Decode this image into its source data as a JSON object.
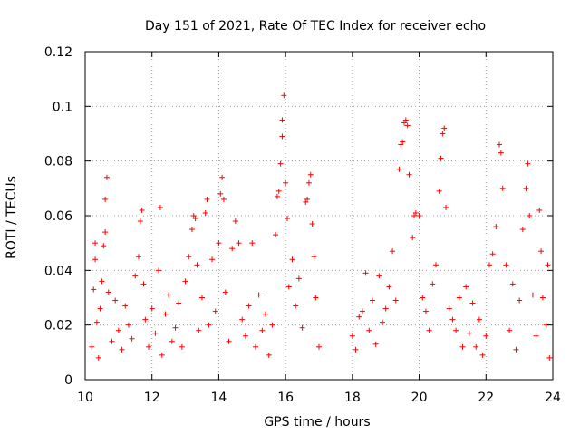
{
  "chart_data": {
    "type": "scatter",
    "title": "Day 151 of 2021, Rate Of TEC Index for receiver echo",
    "xlabel": "GPS time / hours",
    "ylabel": "ROTI / TECUs",
    "xlim": [
      10,
      24
    ],
    "ylim": [
      0,
      0.12
    ],
    "x_ticks": [
      10,
      12,
      14,
      16,
      18,
      20,
      22,
      24
    ],
    "x_tick_labels": [
      "10",
      "12",
      "14",
      "16",
      "18",
      "20",
      "22",
      "24"
    ],
    "y_ticks": [
      0,
      0.02,
      0.04,
      0.06,
      0.08,
      0.1,
      0.12
    ],
    "y_tick_labels": [
      "0",
      "0.02",
      "0.04",
      "0.06",
      "0.08",
      "0.1",
      "0.12"
    ],
    "grid": true,
    "marker": "+",
    "marker_color": "#ff0000",
    "series": [
      {
        "name": "ROTI",
        "points": [
          [
            10.2,
            0.012
          ],
          [
            10.25,
            0.033
          ],
          [
            10.3,
            0.05
          ],
          [
            10.3,
            0.044
          ],
          [
            10.35,
            0.021
          ],
          [
            10.4,
            0.008
          ],
          [
            10.45,
            0.026
          ],
          [
            10.5,
            0.036
          ],
          [
            10.55,
            0.049
          ],
          [
            10.6,
            0.054
          ],
          [
            10.6,
            0.066
          ],
          [
            10.65,
            0.074
          ],
          [
            10.7,
            0.032
          ],
          [
            10.8,
            0.014
          ],
          [
            10.9,
            0.029
          ],
          [
            11.0,
            0.018
          ],
          [
            11.1,
            0.011
          ],
          [
            11.2,
            0.027
          ],
          [
            11.3,
            0.02
          ],
          [
            11.4,
            0.015
          ],
          [
            11.5,
            0.038
          ],
          [
            11.6,
            0.045
          ],
          [
            11.65,
            0.058
          ],
          [
            11.7,
            0.062
          ],
          [
            11.75,
            0.035
          ],
          [
            11.8,
            0.022
          ],
          [
            11.9,
            0.012
          ],
          [
            12.0,
            0.026
          ],
          [
            12.1,
            0.017
          ],
          [
            12.2,
            0.04
          ],
          [
            12.25,
            0.063
          ],
          [
            12.3,
            0.009
          ],
          [
            12.4,
            0.024
          ],
          [
            12.5,
            0.031
          ],
          [
            12.6,
            0.014
          ],
          [
            12.7,
            0.019
          ],
          [
            12.8,
            0.028
          ],
          [
            12.9,
            0.012
          ],
          [
            13.0,
            0.036
          ],
          [
            13.1,
            0.045
          ],
          [
            13.2,
            0.055
          ],
          [
            13.25,
            0.06
          ],
          [
            13.3,
            0.059
          ],
          [
            13.35,
            0.042
          ],
          [
            13.4,
            0.018
          ],
          [
            13.5,
            0.03
          ],
          [
            13.6,
            0.061
          ],
          [
            13.65,
            0.066
          ],
          [
            13.7,
            0.02
          ],
          [
            13.8,
            0.044
          ],
          [
            13.9,
            0.025
          ],
          [
            14.0,
            0.05
          ],
          [
            14.05,
            0.068
          ],
          [
            14.1,
            0.074
          ],
          [
            14.15,
            0.066
          ],
          [
            14.2,
            0.032
          ],
          [
            14.3,
            0.014
          ],
          [
            14.4,
            0.048
          ],
          [
            14.5,
            0.058
          ],
          [
            14.6,
            0.05
          ],
          [
            14.7,
            0.022
          ],
          [
            14.8,
            0.016
          ],
          [
            14.9,
            0.027
          ],
          [
            15.0,
            0.05
          ],
          [
            15.1,
            0.012
          ],
          [
            15.2,
            0.031
          ],
          [
            15.3,
            0.018
          ],
          [
            15.4,
            0.024
          ],
          [
            15.5,
            0.009
          ],
          [
            15.6,
            0.02
          ],
          [
            15.7,
            0.053
          ],
          [
            15.75,
            0.067
          ],
          [
            15.8,
            0.069
          ],
          [
            15.85,
            0.079
          ],
          [
            15.9,
            0.089
          ],
          [
            15.9,
            0.095
          ],
          [
            15.95,
            0.104
          ],
          [
            16.0,
            0.072
          ],
          [
            16.05,
            0.059
          ],
          [
            16.1,
            0.034
          ],
          [
            16.2,
            0.044
          ],
          [
            16.3,
            0.027
          ],
          [
            16.4,
            0.037
          ],
          [
            16.5,
            0.019
          ],
          [
            16.6,
            0.065
          ],
          [
            16.65,
            0.066
          ],
          [
            16.7,
            0.072
          ],
          [
            16.75,
            0.075
          ],
          [
            16.8,
            0.057
          ],
          [
            16.85,
            0.045
          ],
          [
            16.9,
            0.03
          ],
          [
            17.0,
            0.012
          ],
          [
            18.0,
            0.016
          ],
          [
            18.1,
            0.011
          ],
          [
            18.2,
            0.023
          ],
          [
            18.3,
            0.025
          ],
          [
            18.4,
            0.039
          ],
          [
            18.5,
            0.018
          ],
          [
            18.6,
            0.029
          ],
          [
            18.7,
            0.013
          ],
          [
            18.8,
            0.038
          ],
          [
            18.9,
            0.021
          ],
          [
            19.0,
            0.026
          ],
          [
            19.1,
            0.034
          ],
          [
            19.2,
            0.047
          ],
          [
            19.3,
            0.029
          ],
          [
            19.4,
            0.077
          ],
          [
            19.45,
            0.086
          ],
          [
            19.5,
            0.087
          ],
          [
            19.55,
            0.094
          ],
          [
            19.6,
            0.095
          ],
          [
            19.65,
            0.093
          ],
          [
            19.7,
            0.075
          ],
          [
            19.8,
            0.052
          ],
          [
            19.85,
            0.06
          ],
          [
            19.9,
            0.061
          ],
          [
            20.0,
            0.06
          ],
          [
            20.1,
            0.03
          ],
          [
            20.2,
            0.025
          ],
          [
            20.3,
            0.018
          ],
          [
            20.4,
            0.035
          ],
          [
            20.5,
            0.042
          ],
          [
            20.6,
            0.069
          ],
          [
            20.65,
            0.081
          ],
          [
            20.7,
            0.09
          ],
          [
            20.75,
            0.092
          ],
          [
            20.8,
            0.063
          ],
          [
            20.9,
            0.026
          ],
          [
            21.0,
            0.022
          ],
          [
            21.1,
            0.018
          ],
          [
            21.2,
            0.03
          ],
          [
            21.3,
            0.012
          ],
          [
            21.4,
            0.034
          ],
          [
            21.5,
            0.017
          ],
          [
            21.6,
            0.028
          ],
          [
            21.7,
            0.012
          ],
          [
            21.8,
            0.022
          ],
          [
            21.9,
            0.009
          ],
          [
            22.0,
            0.016
          ],
          [
            22.1,
            0.042
          ],
          [
            22.2,
            0.046
          ],
          [
            22.3,
            0.056
          ],
          [
            22.4,
            0.086
          ],
          [
            22.45,
            0.083
          ],
          [
            22.5,
            0.07
          ],
          [
            22.6,
            0.042
          ],
          [
            22.7,
            0.018
          ],
          [
            22.8,
            0.035
          ],
          [
            22.9,
            0.011
          ],
          [
            23.0,
            0.029
          ],
          [
            23.1,
            0.055
          ],
          [
            23.2,
            0.07
          ],
          [
            23.25,
            0.079
          ],
          [
            23.3,
            0.06
          ],
          [
            23.4,
            0.031
          ],
          [
            23.5,
            0.016
          ],
          [
            23.6,
            0.062
          ],
          [
            23.65,
            0.047
          ],
          [
            23.7,
            0.03
          ],
          [
            23.8,
            0.02
          ],
          [
            23.85,
            0.042
          ],
          [
            23.9,
            0.008
          ]
        ]
      }
    ]
  }
}
